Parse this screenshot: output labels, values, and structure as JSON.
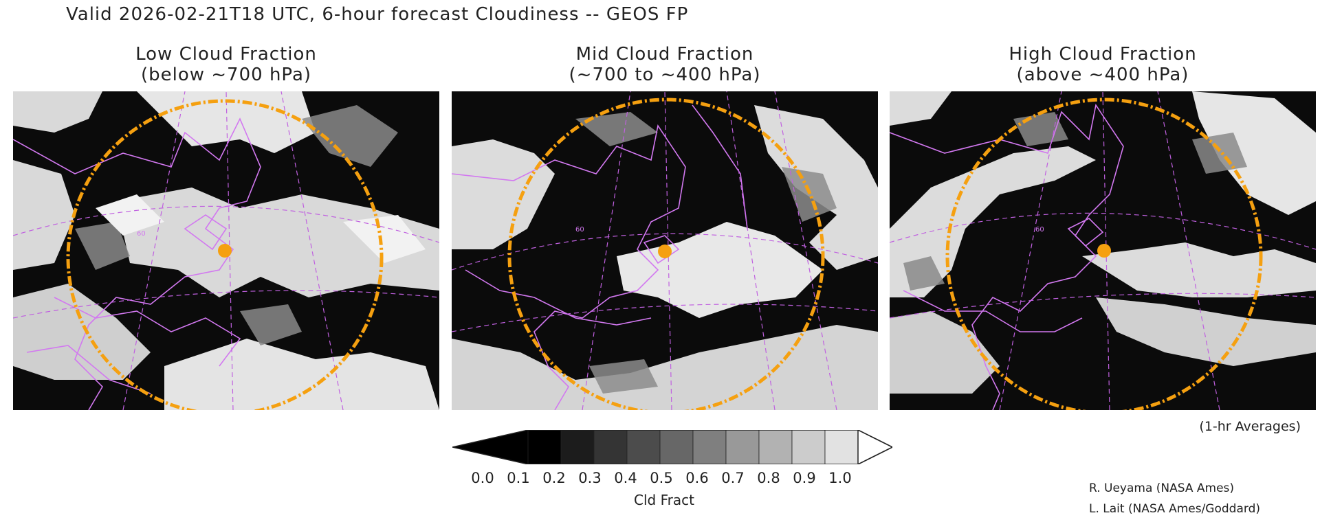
{
  "title": "Valid 2026-02-21T18 UTC, 6-hour forecast Cloudiness -- GEOS FP",
  "panels": [
    {
      "title_line1": "Low Cloud Fraction",
      "title_line2": "(below ~700 hPa)"
    },
    {
      "title_line1": "Mid Cloud Fraction",
      "title_line2": "(~700 to ~400 hPa)"
    },
    {
      "title_line1": "High Cloud Fraction",
      "title_line2": "(above ~400 hPa)"
    }
  ],
  "map_labels": {
    "lat_label": "60"
  },
  "colors": {
    "overlay_coast": "#d278f0",
    "range_ring": "#f5a010",
    "site_marker": "#f5a010"
  },
  "note": "(1-hr Averages)",
  "colorbar": {
    "title": "Cld Fract",
    "ticks": [
      "0.0",
      "0.1",
      "0.2",
      "0.3",
      "0.4",
      "0.5",
      "0.6",
      "0.7",
      "0.8",
      "0.9",
      "1.0"
    ],
    "fills": [
      "#000000",
      "#1c1c1c",
      "#343434",
      "#4c4c4c",
      "#676767",
      "#7f7f7f",
      "#999999",
      "#b2b2b2",
      "#cccccc",
      "#e2e2e2"
    ]
  },
  "credits": [
    "R. Ueyama (NASA Ames)",
    "L. Lait (NASA Ames/Goddard)"
  ]
}
